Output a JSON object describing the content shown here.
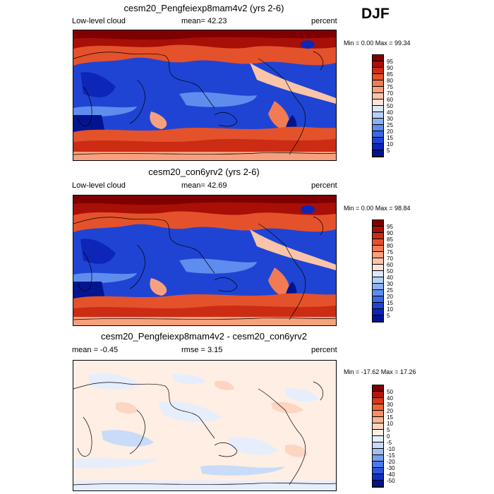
{
  "season": "DJF",
  "panels": [
    {
      "title": "cesm20_Pengfeiexp8mam4v2 (yrs 2-6)",
      "left_label": "Low-level cloud",
      "center_label": "mean=  42.23",
      "right_label": "percent",
      "minmax": "Min =   0.00 Max =  99.34",
      "colorbar_labels": [
        "95",
        "90",
        "85",
        "80",
        "75",
        "70",
        "60",
        "50",
        "40",
        "30",
        "25",
        "20",
        "15",
        "10",
        "5"
      ],
      "colorbar_colors": [
        "#7f0000",
        "#a80f07",
        "#cc2c13",
        "#e4522b",
        "#f27b53",
        "#f8a07e",
        "#fbc4a8",
        "#fde6d8",
        "#dbe8fb",
        "#b8d0f7",
        "#8cb0f2",
        "#5f8ded",
        "#3a69e6",
        "#1f44d4",
        "#0d26b8",
        "#021591"
      ]
    },
    {
      "title": "cesm20_con6yrv2 (yrs 2-6)",
      "left_label": "Low-level cloud",
      "center_label": "mean=  42.69",
      "right_label": "percent",
      "minmax": "Min =   0.00 Max =  98.84",
      "colorbar_labels": [
        "95",
        "90",
        "85",
        "80",
        "75",
        "70",
        "60",
        "50",
        "40",
        "30",
        "25",
        "20",
        "15",
        "10",
        "5"
      ],
      "colorbar_colors": [
        "#7f0000",
        "#a80f07",
        "#cc2c13",
        "#e4522b",
        "#f27b53",
        "#f8a07e",
        "#fbc4a8",
        "#fde6d8",
        "#dbe8fb",
        "#b8d0f7",
        "#8cb0f2",
        "#5f8ded",
        "#3a69e6",
        "#1f44d4",
        "#0d26b8",
        "#021591"
      ]
    },
    {
      "title": "cesm20_Pengfeiexp8mam4v2 - cesm20_con6yrv2",
      "left_label": "mean =  -0.45",
      "center_label": "rmse =   3.15",
      "right_label": "percent",
      "minmax": "Min = -17.62 Max =  17.26",
      "colorbar_labels": [
        "50",
        "40",
        "30",
        "20",
        "15",
        "10",
        "5",
        "0",
        "-5",
        "-10",
        "-15",
        "-20",
        "-30",
        "-40",
        "-50"
      ],
      "colorbar_colors": [
        "#7f0000",
        "#b2180c",
        "#d9381a",
        "#f06335",
        "#f78d63",
        "#fab493",
        "#fdd5c0",
        "#feeee4",
        "#e6eefc",
        "#c8dbf8",
        "#a2c0f4",
        "#76a0ef",
        "#4c7ce9",
        "#2a55dc",
        "#1030c2",
        "#021591"
      ]
    }
  ]
}
